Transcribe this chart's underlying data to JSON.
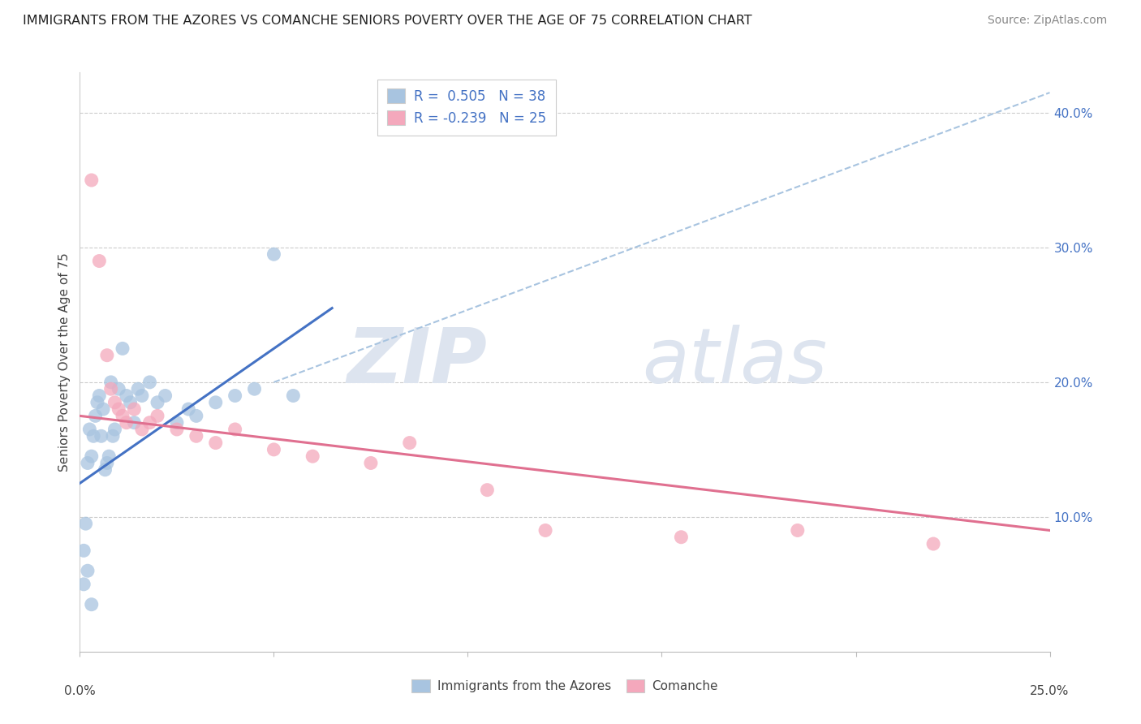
{
  "title": "IMMIGRANTS FROM THE AZORES VS COMANCHE SENIORS POVERTY OVER THE AGE OF 75 CORRELATION CHART",
  "source": "Source: ZipAtlas.com",
  "ylabel": "Seniors Poverty Over the Age of 75",
  "xlim": [
    0.0,
    25.0
  ],
  "ylim": [
    0.0,
    43.0
  ],
  "ytick_vals": [
    10.0,
    20.0,
    30.0,
    40.0
  ],
  "ytick_labels": [
    "10.0%",
    "20.0%",
    "30.0%",
    "40.0%"
  ],
  "watermark_zip": "ZIP",
  "watermark_atlas": "atlas",
  "blue_r": 0.505,
  "blue_n": 38,
  "pink_r": -0.239,
  "pink_n": 25,
  "blue_color": "#a8c4e0",
  "blue_line_color": "#4472c4",
  "pink_color": "#f4a8bc",
  "pink_line_color": "#e07090",
  "dashed_color": "#a8c4e0",
  "blue_dots": [
    [
      0.1,
      7.5
    ],
    [
      0.15,
      9.5
    ],
    [
      0.2,
      14.0
    ],
    [
      0.25,
      16.5
    ],
    [
      0.3,
      14.5
    ],
    [
      0.35,
      16.0
    ],
    [
      0.4,
      17.5
    ],
    [
      0.45,
      18.5
    ],
    [
      0.5,
      19.0
    ],
    [
      0.55,
      16.0
    ],
    [
      0.6,
      18.0
    ],
    [
      0.65,
      13.5
    ],
    [
      0.7,
      14.0
    ],
    [
      0.75,
      14.5
    ],
    [
      0.8,
      20.0
    ],
    [
      0.85,
      16.0
    ],
    [
      0.9,
      16.5
    ],
    [
      1.0,
      19.5
    ],
    [
      1.1,
      22.5
    ],
    [
      1.2,
      19.0
    ],
    [
      1.3,
      18.5
    ],
    [
      1.4,
      17.0
    ],
    [
      1.5,
      19.5
    ],
    [
      1.6,
      19.0
    ],
    [
      1.8,
      20.0
    ],
    [
      2.0,
      18.5
    ],
    [
      2.2,
      19.0
    ],
    [
      2.5,
      17.0
    ],
    [
      2.8,
      18.0
    ],
    [
      3.0,
      17.5
    ],
    [
      3.5,
      18.5
    ],
    [
      4.0,
      19.0
    ],
    [
      4.5,
      19.5
    ],
    [
      5.0,
      29.5
    ],
    [
      5.5,
      19.0
    ],
    [
      0.1,
      5.0
    ],
    [
      0.2,
      6.0
    ],
    [
      0.3,
      3.5
    ]
  ],
  "pink_dots": [
    [
      0.3,
      35.0
    ],
    [
      0.5,
      29.0
    ],
    [
      0.7,
      22.0
    ],
    [
      0.8,
      19.5
    ],
    [
      0.9,
      18.5
    ],
    [
      1.0,
      18.0
    ],
    [
      1.1,
      17.5
    ],
    [
      1.2,
      17.0
    ],
    [
      1.4,
      18.0
    ],
    [
      1.6,
      16.5
    ],
    [
      1.8,
      17.0
    ],
    [
      2.0,
      17.5
    ],
    [
      2.5,
      16.5
    ],
    [
      3.0,
      16.0
    ],
    [
      3.5,
      15.5
    ],
    [
      4.0,
      16.5
    ],
    [
      5.0,
      15.0
    ],
    [
      6.0,
      14.5
    ],
    [
      7.5,
      14.0
    ],
    [
      8.5,
      15.5
    ],
    [
      10.5,
      12.0
    ],
    [
      12.0,
      9.0
    ],
    [
      15.5,
      8.5
    ],
    [
      18.5,
      9.0
    ],
    [
      22.0,
      8.0
    ]
  ],
  "blue_line_x": [
    0.0,
    6.5
  ],
  "blue_line_y": [
    12.5,
    25.5
  ],
  "pink_line_x": [
    0.0,
    25.0
  ],
  "pink_line_y": [
    17.5,
    9.0
  ],
  "dash_line_x": [
    5.0,
    25.0
  ],
  "dash_line_y": [
    20.0,
    41.5
  ]
}
